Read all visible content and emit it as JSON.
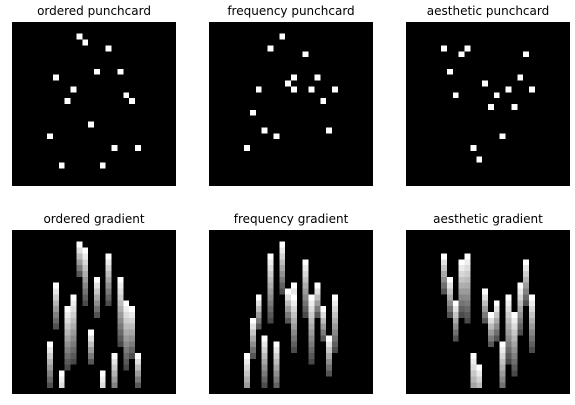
{
  "panels": [
    {
      "title": "ordered punchcard",
      "kind": "punch",
      "points": [
        [
          11,
          2
        ],
        [
          12,
          3
        ],
        [
          16,
          4
        ],
        [
          7,
          9
        ],
        [
          14,
          8
        ],
        [
          18,
          8
        ],
        [
          10,
          11
        ],
        [
          19,
          12
        ],
        [
          9,
          13
        ],
        [
          20,
          13
        ],
        [
          13,
          17
        ],
        [
          6,
          19
        ],
        [
          17,
          21
        ],
        [
          21,
          21
        ],
        [
          8,
          24
        ],
        [
          15,
          24
        ]
      ]
    },
    {
      "title": "frequency punchcard",
      "kind": "punch",
      "points": [
        [
          12,
          2
        ],
        [
          10,
          4
        ],
        [
          16,
          5
        ],
        [
          14,
          9
        ],
        [
          13,
          10
        ],
        [
          18,
          9
        ],
        [
          8,
          11
        ],
        [
          14,
          11
        ],
        [
          17,
          11
        ],
        [
          21,
          11
        ],
        [
          19,
          13
        ],
        [
          7,
          15
        ],
        [
          9,
          18
        ],
        [
          20,
          18
        ],
        [
          11,
          19
        ],
        [
          6,
          21
        ]
      ]
    },
    {
      "title": "aesthetic punchcard",
      "kind": "punch",
      "points": [
        [
          6,
          4
        ],
        [
          10,
          4
        ],
        [
          9,
          5
        ],
        [
          20,
          5
        ],
        [
          7,
          8
        ],
        [
          19,
          9
        ],
        [
          13,
          10
        ],
        [
          17,
          11
        ],
        [
          21,
          11
        ],
        [
          8,
          12
        ],
        [
          15,
          12
        ],
        [
          14,
          14
        ],
        [
          18,
          14
        ],
        [
          16,
          19
        ],
        [
          11,
          21
        ],
        [
          12,
          23
        ]
      ]
    },
    {
      "title": "ordered gradient",
      "kind": "grad",
      "points": [
        [
          11,
          2
        ],
        [
          12,
          3
        ],
        [
          16,
          4
        ],
        [
          7,
          9
        ],
        [
          14,
          8
        ],
        [
          18,
          8
        ],
        [
          10,
          11
        ],
        [
          19,
          12
        ],
        [
          9,
          13
        ],
        [
          20,
          13
        ],
        [
          13,
          17
        ],
        [
          6,
          19
        ],
        [
          17,
          21
        ],
        [
          21,
          21
        ],
        [
          8,
          24
        ],
        [
          15,
          24
        ]
      ]
    },
    {
      "title": "frequency gradient",
      "kind": "grad",
      "points": [
        [
          12,
          2
        ],
        [
          10,
          4
        ],
        [
          16,
          5
        ],
        [
          14,
          9
        ],
        [
          13,
          10
        ],
        [
          18,
          9
        ],
        [
          8,
          11
        ],
        [
          14,
          11
        ],
        [
          17,
          11
        ],
        [
          21,
          11
        ],
        [
          19,
          13
        ],
        [
          7,
          15
        ],
        [
          9,
          18
        ],
        [
          20,
          18
        ],
        [
          11,
          19
        ],
        [
          6,
          21
        ]
      ]
    },
    {
      "title": "aesthetic gradient",
      "kind": "grad",
      "points": [
        [
          6,
          4
        ],
        [
          10,
          4
        ],
        [
          9,
          5
        ],
        [
          20,
          5
        ],
        [
          7,
          8
        ],
        [
          19,
          9
        ],
        [
          13,
          10
        ],
        [
          17,
          11
        ],
        [
          21,
          11
        ],
        [
          8,
          12
        ],
        [
          15,
          12
        ],
        [
          14,
          14
        ],
        [
          18,
          14
        ],
        [
          16,
          19
        ],
        [
          11,
          21
        ],
        [
          12,
          23
        ]
      ]
    }
  ],
  "colors": {
    "background": "#000000",
    "mark": "#ffffff",
    "figure": "#ffffff"
  }
}
